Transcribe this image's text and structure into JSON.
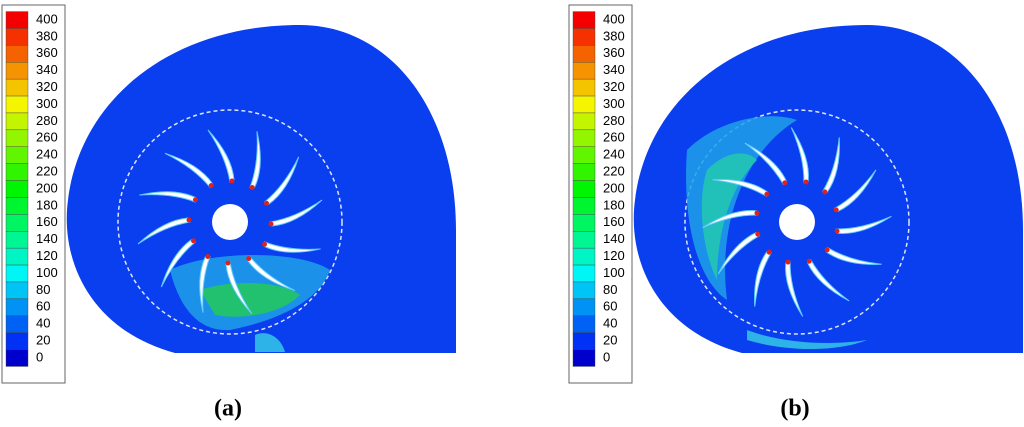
{
  "panels": [
    {
      "label": "(a)",
      "colorbar": {
        "ticks": [
          400,
          380,
          360,
          340,
          320,
          300,
          280,
          260,
          240,
          220,
          200,
          180,
          160,
          140,
          120,
          100,
          80,
          60,
          40,
          20,
          0
        ]
      }
    },
    {
      "label": "(b)",
      "colorbar": {
        "ticks": [
          400,
          380,
          360,
          340,
          320,
          300,
          280,
          260,
          240,
          220,
          200,
          180,
          160,
          140,
          120,
          100,
          80,
          60,
          40,
          20,
          0
        ]
      }
    }
  ]
}
